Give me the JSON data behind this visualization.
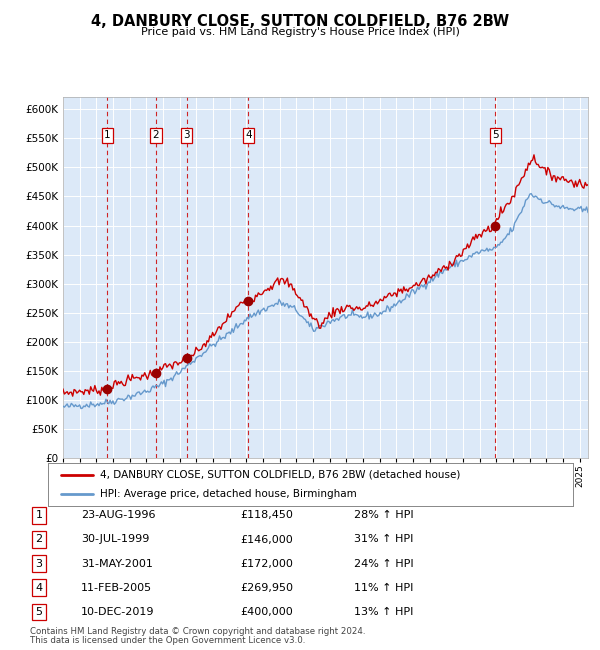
{
  "title": "4, DANBURY CLOSE, SUTTON COLDFIELD, B76 2BW",
  "subtitle": "Price paid vs. HM Land Registry's House Price Index (HPI)",
  "legend_red": "4, DANBURY CLOSE, SUTTON COLDFIELD, B76 2BW (detached house)",
  "legend_blue": "HPI: Average price, detached house, Birmingham",
  "footer1": "Contains HM Land Registry data © Crown copyright and database right 2024.",
  "footer2": "This data is licensed under the Open Government Licence v3.0.",
  "sales": [
    {
      "num": 1,
      "date_label": "23-AUG-1996",
      "date_x": 1996.65,
      "price": 118450,
      "hpi_pct": "28% ↑ HPI"
    },
    {
      "num": 2,
      "date_label": "30-JUL-1999",
      "date_x": 1999.58,
      "price": 146000,
      "hpi_pct": "31% ↑ HPI"
    },
    {
      "num": 3,
      "date_label": "31-MAY-2001",
      "date_x": 2001.42,
      "price": 172000,
      "hpi_pct": "24% ↑ HPI"
    },
    {
      "num": 4,
      "date_label": "11-FEB-2005",
      "date_x": 2005.12,
      "price": 269950,
      "hpi_pct": "11% ↑ HPI"
    },
    {
      "num": 5,
      "date_label": "10-DEC-2019",
      "date_x": 2019.94,
      "price": 400000,
      "hpi_pct": "13% ↑ HPI"
    }
  ],
  "xlim": [
    1994.0,
    2025.5
  ],
  "ylim": [
    0,
    620000
  ],
  "yticks": [
    0,
    50000,
    100000,
    150000,
    200000,
    250000,
    300000,
    350000,
    400000,
    450000,
    500000,
    550000,
    600000
  ],
  "bg_color": "#dce9f8",
  "grid_color": "#ffffff",
  "red_color": "#cc0000",
  "blue_color": "#6699cc",
  "vline_color": "#cc0000",
  "hpi_key_years": [
    1994,
    1995,
    1996,
    1997,
    1998,
    1999,
    2000,
    2001,
    2002,
    2003,
    2004,
    2005,
    2006,
    2007,
    2008,
    2009,
    2010,
    2011,
    2012,
    2013,
    2014,
    2015,
    2016,
    2017,
    2018,
    2019,
    2020,
    2021,
    2022,
    2023,
    2024,
    2025.5
  ],
  "hpi_key_vals": [
    88000,
    91000,
    93000,
    98000,
    106000,
    115000,
    128000,
    148000,
    172000,
    195000,
    215000,
    240000,
    255000,
    268000,
    255000,
    220000,
    235000,
    245000,
    243000,
    248000,
    265000,
    285000,
    305000,
    325000,
    340000,
    355000,
    360000,
    395000,
    455000,
    440000,
    430000,
    425000
  ],
  "red_key_years": [
    1994.0,
    1995.0,
    1996.0,
    1996.65,
    1997.0,
    1998.0,
    1999.0,
    1999.58,
    2000.0,
    2001.0,
    2001.42,
    2002.0,
    2003.0,
    2004.0,
    2005.0,
    2005.12,
    2006.0,
    2007.0,
    2007.5,
    2008.0,
    2009.0,
    2009.5,
    2010.0,
    2011.0,
    2012.0,
    2013.0,
    2014.0,
    2015.0,
    2016.0,
    2017.0,
    2018.0,
    2019.0,
    2019.94,
    2020.0,
    2021.0,
    2022.0,
    2022.3,
    2023.0,
    2024.0,
    2025.0,
    2025.5
  ],
  "red_key_vals": [
    112000,
    115000,
    117000,
    118450,
    125000,
    135000,
    143000,
    146000,
    155000,
    165000,
    172000,
    182000,
    210000,
    245000,
    275000,
    269950,
    288000,
    305000,
    302000,
    285000,
    240000,
    228000,
    248000,
    260000,
    257000,
    270000,
    285000,
    295000,
    310000,
    330000,
    355000,
    385000,
    400000,
    410000,
    450000,
    510000,
    515000,
    490000,
    480000,
    472000,
    468000
  ],
  "hpi_noise_seed": 42,
  "red_noise_seed": 7,
  "hpi_noise_scale": 3000,
  "red_noise_scale": 4000,
  "n_points": 380
}
